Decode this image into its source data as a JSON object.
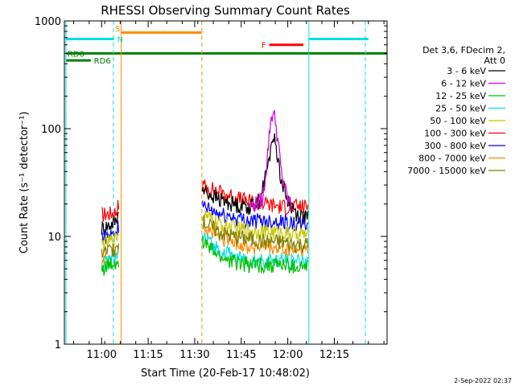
{
  "chart_data": {
    "type": "line",
    "title": "RHESSI Observing Summary Count Rates",
    "xlabel": "Start Time (20-Feb-17 10:48:02)",
    "ylabel": "Count Rate (s⁻¹ detector⁻¹)",
    "xaxis_unit": "minutes since 10:48:02",
    "xlim": [
      0,
      104
    ],
    "ylim": [
      1,
      1000
    ],
    "yscale": "log",
    "grid": false,
    "x_ticks": [
      {
        "t": 12,
        "label": "11:00"
      },
      {
        "t": 27,
        "label": "11:15"
      },
      {
        "t": 42,
        "label": "11:30"
      },
      {
        "t": 57,
        "label": "11:45"
      },
      {
        "t": 72,
        "label": "12:00"
      },
      {
        "t": 87,
        "label": "12:15"
      }
    ],
    "y_ticks": [
      {
        "v": 1,
        "label": "1"
      },
      {
        "v": 10,
        "label": "10"
      },
      {
        "v": 100,
        "label": "100"
      },
      {
        "v": 1000,
        "label": "1000"
      }
    ],
    "legend": {
      "placement": "right",
      "header": [
        "Det 3,6, FDecim 2,",
        "Att 0"
      ],
      "entries": [
        {
          "name": "3 - 6 keV",
          "color": "#000000"
        },
        {
          "name": "6 - 12 keV",
          "color": "#d400d4"
        },
        {
          "name": "12 - 25 keV",
          "color": "#00c000"
        },
        {
          "name": "25 - 50 keV",
          "color": "#00e0e0"
        },
        {
          "name": "50 - 100 keV",
          "color": "#c8c800"
        },
        {
          "name": "100 - 300 keV",
          "color": "#ff0000"
        },
        {
          "name": "300 - 800 keV",
          "color": "#0000ff"
        },
        {
          "name": "800 - 7000 keV",
          "color": "#ff8c00"
        },
        {
          "name": "7000 - 15000 keV",
          "color": "#808000"
        }
      ]
    },
    "series": [
      {
        "color": "#ff0000",
        "segments": [
          {
            "t": [
              12,
              15,
              16.5,
              17.5
            ],
            "y": [
              16,
              16.5,
              17,
              20
            ]
          },
          {
            "t": [
              44.5,
              50,
              55,
              60,
              65,
              70,
              74,
              78.5
            ],
            "y": [
              30,
              26,
              23,
              21,
              20,
              19,
              19,
              19
            ]
          }
        ]
      },
      {
        "color": "#000000",
        "segments": [
          {
            "t": [
              12,
              15,
              16.5,
              17.5
            ],
            "y": [
              12,
              13,
              14,
              17
            ]
          },
          {
            "t": [
              44.5,
              50,
              55,
              60,
              63,
              66,
              67,
              68,
              69,
              70,
              72,
              75,
              78.5
            ],
            "y": [
              27,
              22,
              20,
              19,
              22,
              50,
              85,
              75,
              50,
              32,
              22,
              16,
              15
            ]
          }
        ]
      },
      {
        "color": "#d400d4",
        "segments": [
          {
            "t": [
              60,
              64,
              65.5,
              66.5,
              67.3,
              68,
              69,
              70,
              72,
              74
            ],
            "y": [
              19,
              22,
              60,
              120,
              145,
              120,
              70,
              38,
              22,
              18
            ]
          }
        ]
      },
      {
        "color": "#0000ff",
        "segments": [
          {
            "t": [
              12,
              15,
              16.5,
              17.5
            ],
            "y": [
              10,
              10.5,
              11,
              13
            ]
          },
          {
            "t": [
              44.5,
              50,
              55,
              60,
              65,
              70,
              74,
              78.5
            ],
            "y": [
              19,
              16,
              15,
              14,
              14,
              14,
              13,
              13
            ]
          }
        ]
      },
      {
        "color": "#c8c800",
        "segments": [
          {
            "t": [
              12,
              15,
              16.5,
              17.5
            ],
            "y": [
              8.5,
              9,
              9.5,
              11
            ]
          },
          {
            "t": [
              44.5,
              50,
              55,
              60,
              65,
              70,
              74,
              78.5
            ],
            "y": [
              16,
              13,
              12,
              11.5,
              11,
              11,
              10.5,
              10.5
            ]
          }
        ]
      },
      {
        "color": "#ff8c00",
        "segments": [
          {
            "t": [
              12,
              15,
              16.5,
              17.5
            ],
            "y": [
              6,
              6.5,
              7,
              8
            ]
          },
          {
            "t": [
              44.5,
              50,
              55,
              60,
              65,
              70,
              74,
              78.5
            ],
            "y": [
              13,
              10,
              9,
              8,
              8,
              7.5,
              7.5,
              7.5
            ]
          }
        ]
      },
      {
        "color": "#00e0e0",
        "segments": [
          {
            "t": [
              12,
              15,
              16.5,
              17.5
            ],
            "y": [
              5.5,
              6,
              6.5,
              7
            ]
          },
          {
            "t": [
              44.5,
              50,
              55,
              60,
              65,
              70,
              74,
              78.5
            ],
            "y": [
              10,
              7.5,
              6.5,
              6,
              6,
              6,
              6,
              6
            ]
          }
        ]
      },
      {
        "color": "#00c000",
        "segments": [
          {
            "t": [
              12,
              15,
              16.5,
              17.5
            ],
            "y": [
              5,
              5.5,
              5.8,
              6
            ]
          },
          {
            "t": [
              44.5,
              50,
              55,
              60,
              65,
              70,
              74,
              78.5
            ],
            "y": [
              9,
              6.5,
              5.8,
              5.5,
              5.5,
              5.5,
              5.2,
              5.2
            ]
          }
        ]
      },
      {
        "color": "#808000",
        "segments": [
          {
            "t": [
              12,
              15,
              16.5,
              17.5
            ],
            "y": [
              7,
              7.5,
              8,
              9
            ]
          },
          {
            "t": [
              44.5,
              50,
              55,
              60,
              65,
              70,
              74,
              78.5
            ],
            "y": [
              14,
              11,
              10,
              9.5,
              9,
              9,
              8.5,
              8.5
            ]
          }
        ]
      }
    ],
    "vlines": [
      {
        "t": 0.5,
        "color": "#00e0e0",
        "dashed": false
      },
      {
        "t": 15.8,
        "color": "#00e0e0",
        "dashed": true
      },
      {
        "t": 18.3,
        "color": "#ff8c00",
        "dashed": false
      },
      {
        "t": 44.3,
        "color": "#ff8c00",
        "dashed": true
      },
      {
        "t": 78.8,
        "color": "#00e0e0",
        "dashed": false
      },
      {
        "t": 97,
        "color": "#00e0e0",
        "dashed": true
      }
    ],
    "bars": [
      {
        "t0": 0.5,
        "t1": 16,
        "y": 680,
        "color": "#00e0e0"
      },
      {
        "t0": 78.8,
        "t1": 98,
        "y": 680,
        "color": "#00e0e0"
      },
      {
        "t0": 18.3,
        "t1": 44.3,
        "y": 780,
        "color": "#ff8c00"
      },
      {
        "t0": 0.5,
        "t1": 104,
        "y": 500,
        "color": "#008000"
      },
      {
        "t0": 0.5,
        "t1": 8.5,
        "y": 430,
        "color": "#008000"
      },
      {
        "t0": 66,
        "t1": 77,
        "y": 600,
        "color": "#ff0000"
      }
    ],
    "annotations": [
      {
        "text": "RD0",
        "t": 1,
        "y": 500,
        "color": "#008000"
      },
      {
        "text": "RD6",
        "t": 9.5,
        "y": 430,
        "color": "#008000"
      },
      {
        "text": "S",
        "t": 16.3,
        "y": 860,
        "color": "#ff8c00"
      },
      {
        "text": "N",
        "t": 17,
        "y": 680,
        "color": "#00e0e0"
      },
      {
        "text": "F",
        "t": 63.5,
        "y": 600,
        "color": "#ff0000"
      }
    ],
    "footer": "2-Sep-2022 02:37"
  }
}
